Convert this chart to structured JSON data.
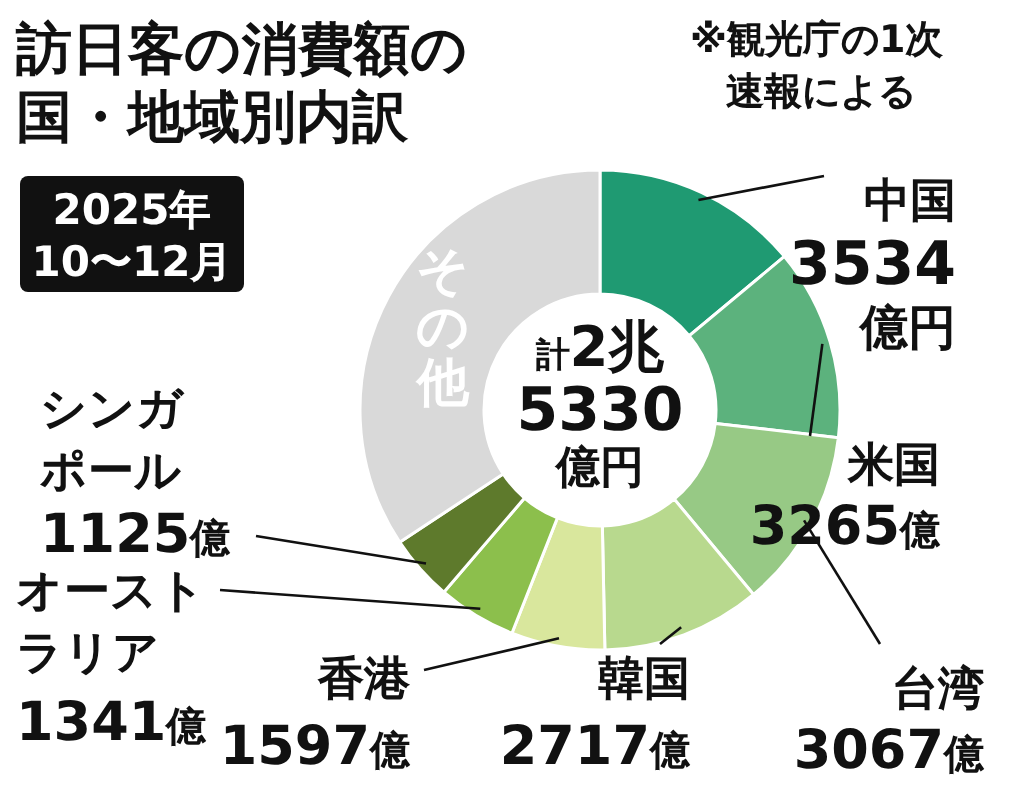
{
  "chart_data": {
    "type": "donut",
    "title": "訪日客の消費額の国・地域別内訳",
    "subtitle": "2025年10〜12月",
    "categories": [
      "中国",
      "米国",
      "台湾",
      "韓国",
      "香港",
      "オーストラリア",
      "シンガポール",
      "その他"
    ],
    "values": [
      3534,
      3265,
      3067,
      2717,
      1597,
      1341,
      1125,
      8684
    ],
    "colors": [
      "#1f9a72",
      "#5cb27d",
      "#97c985",
      "#b8d98e",
      "#d9e79d",
      "#8cbf4c",
      "#5e7a2c",
      "#d9d9d9"
    ],
    "value_labels": [
      "3534億円",
      "3265億",
      "3067億",
      "2717億",
      "1597億",
      "1341億",
      "1125億",
      null
    ],
    "annotations": [
      "※観光庁の1次速報による",
      "計2兆5330億円"
    ]
  }
}
